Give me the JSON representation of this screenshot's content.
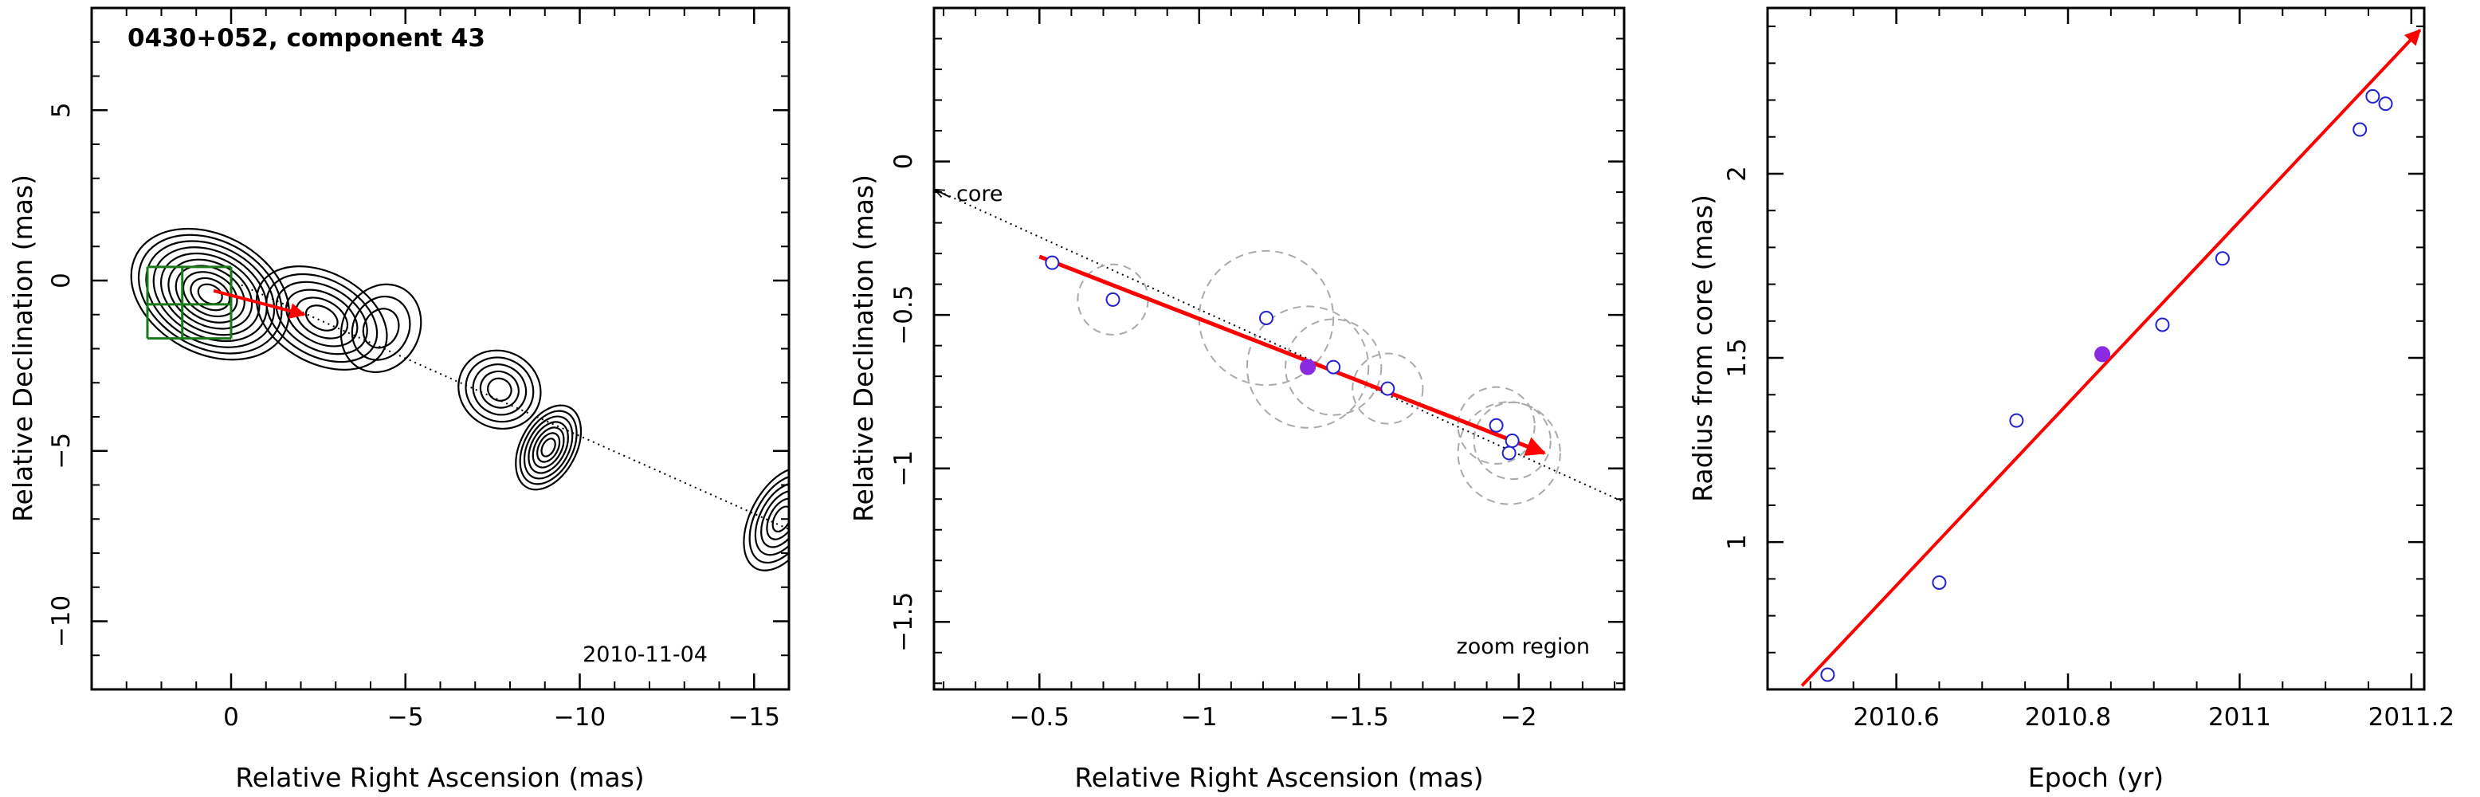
{
  "chart_data": [
    {
      "type": "contour",
      "title": "0430+052, component 43",
      "annotation": "2010-11-04",
      "xlabel": "Relative Right Ascension (mas)",
      "ylabel": "Relative Declination (mas)",
      "xlim": [
        4,
        -16
      ],
      "ylim": [
        -12,
        8
      ],
      "xticks": [
        {
          "v": 0,
          "label": "0"
        },
        {
          "v": -5,
          "label": "−5"
        },
        {
          "v": -10,
          "label": "−10"
        },
        {
          "v": -15,
          "label": "−15"
        }
      ],
      "yticks": [
        {
          "v": 5,
          "label": "5"
        },
        {
          "v": 0,
          "label": "0"
        },
        {
          "v": -5,
          "label": "−5"
        },
        {
          "v": -10,
          "label": "−10"
        }
      ],
      "jet_axis": {
        "from": [
          0,
          0
        ],
        "to": [
          -16,
          -7.3
        ]
      },
      "blobs": [
        {
          "x": 0.6,
          "y": -0.4,
          "sx": 2.4,
          "sy": 1.7,
          "n": 10
        },
        {
          "x": -2.6,
          "y": -1.1,
          "sx": 2.0,
          "sy": 1.3,
          "n": 6
        },
        {
          "x": -4.3,
          "y": -1.4,
          "sx": 1.1,
          "sy": 1.3,
          "n": 3
        },
        {
          "x": -7.7,
          "y": -3.2,
          "sx": 1.2,
          "sy": 1.1,
          "n": 5
        },
        {
          "x": -9.1,
          "y": -4.9,
          "sx": 0.8,
          "sy": 1.3,
          "n": 7
        },
        {
          "x": -15.8,
          "y": -7.0,
          "sx": 0.9,
          "sy": 1.6,
          "n": 6
        }
      ],
      "zoom_grid": {
        "x": [
          0,
          1.4,
          2.4
        ],
        "y": [
          0.4,
          -0.7,
          -1.7
        ]
      },
      "vector": {
        "from": [
          0.5,
          -0.3
        ],
        "to": [
          -2.1,
          -1.0
        ]
      }
    },
    {
      "type": "scatter",
      "xlabel": "Relative Right Ascension (mas)",
      "ylabel": "Relative Declination (mas)",
      "annotation": "zoom region",
      "core_label": "core",
      "xlim": [
        -0.17,
        -2.33
      ],
      "ylim": [
        -1.72,
        0.5
      ],
      "xticks": [
        {
          "v": -0.5,
          "label": "−0.5"
        },
        {
          "v": -1,
          "label": "−1"
        },
        {
          "v": -1.5,
          "label": "−1.5"
        },
        {
          "v": -2,
          "label": "−2"
        }
      ],
      "yticks": [
        {
          "v": 0,
          "label": "0"
        },
        {
          "v": -0.5,
          "label": "−0.5"
        },
        {
          "v": -1,
          "label": "−1"
        },
        {
          "v": -1.5,
          "label": "−1.5"
        }
      ],
      "points": [
        {
          "x": -0.54,
          "y": -0.33,
          "r": 0.0
        },
        {
          "x": -0.73,
          "y": -0.45,
          "r": 0.11
        },
        {
          "x": -1.21,
          "y": -0.51,
          "r": 0.21
        },
        {
          "x": -1.34,
          "y": -0.67,
          "r": 0.19,
          "filled": true
        },
        {
          "x": -1.42,
          "y": -0.67,
          "r": 0.15
        },
        {
          "x": -1.59,
          "y": -0.74,
          "r": 0.11
        },
        {
          "x": -1.93,
          "y": -0.86,
          "r": 0.12
        },
        {
          "x": -1.98,
          "y": -0.91,
          "r": 0.12
        },
        {
          "x": -1.97,
          "y": -0.95,
          "r": 0.16
        }
      ],
      "jet_axis": {
        "from": [
          -0.17,
          -0.09
        ],
        "to": [
          -2.33,
          -1.11
        ]
      },
      "vector": {
        "from": [
          -0.5,
          -0.31
        ],
        "to": [
          -2.08,
          -0.95
        ]
      }
    },
    {
      "type": "scatter",
      "xlabel": "Epoch (yr)",
      "ylabel": "Radius from core (mas)",
      "xlim": [
        2010.45,
        2011.215
      ],
      "ylim": [
        0.6,
        2.45
      ],
      "xticks": [
        {
          "v": 2010.6,
          "label": "2010.6"
        },
        {
          "v": 2010.8,
          "label": "2010.8"
        },
        {
          "v": 2011,
          "label": "2011"
        },
        {
          "v": 2011.2,
          "label": "2011.2"
        }
      ],
      "yticks": [
        {
          "v": 1,
          "label": "1"
        },
        {
          "v": 1.5,
          "label": "1.5"
        },
        {
          "v": 2,
          "label": "2"
        }
      ],
      "points": [
        {
          "x": 2010.52,
          "y": 0.64
        },
        {
          "x": 2010.65,
          "y": 0.89
        },
        {
          "x": 2010.74,
          "y": 1.33
        },
        {
          "x": 2010.84,
          "y": 1.51,
          "filled": true
        },
        {
          "x": 2010.91,
          "y": 1.59
        },
        {
          "x": 2010.98,
          "y": 1.77
        },
        {
          "x": 2011.14,
          "y": 2.12
        },
        {
          "x": 2011.155,
          "y": 2.21
        },
        {
          "x": 2011.17,
          "y": 2.19
        }
      ],
      "fit": {
        "from": [
          2010.49,
          0.61
        ],
        "to": [
          2011.21,
          2.39
        ]
      }
    }
  ],
  "colors": {
    "fit": "#ff0000",
    "point": "#2222cc",
    "filled": "#8a2be2",
    "grid": "#1a7a1a",
    "circle": "#aaaaaa"
  }
}
